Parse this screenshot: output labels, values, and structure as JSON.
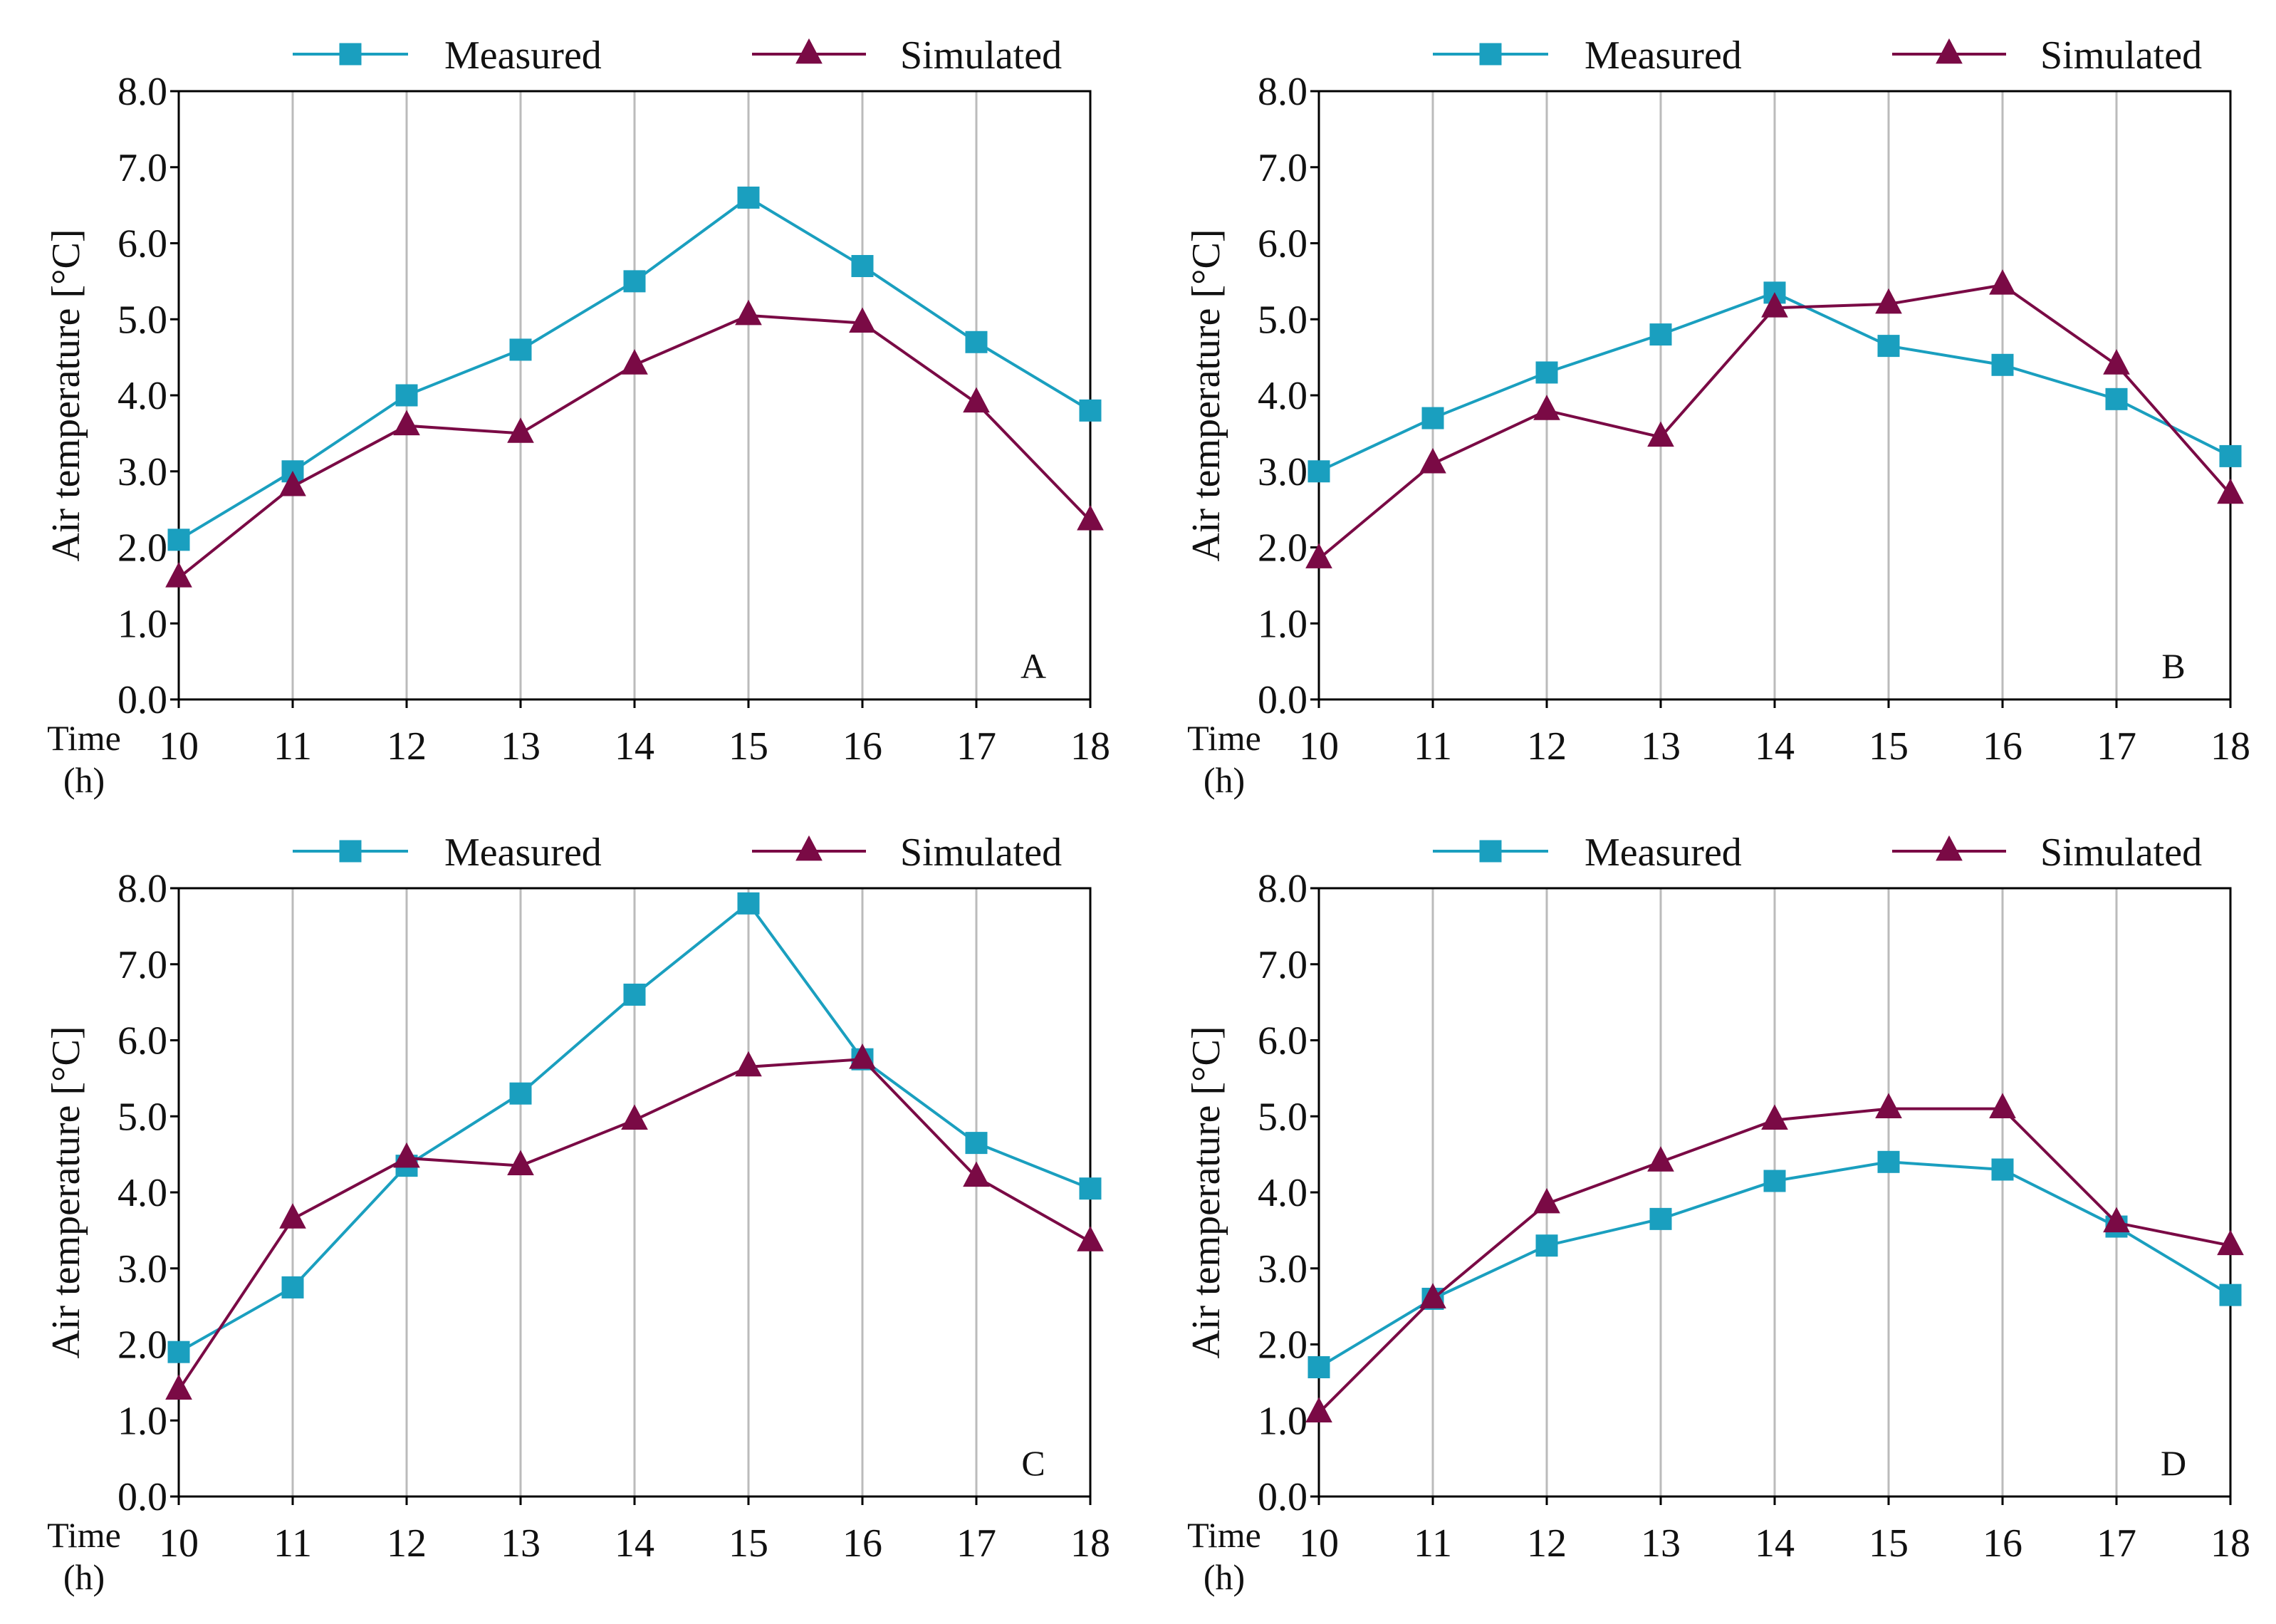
{
  "legend": {
    "measured": "Measured",
    "simulated": "Simulated"
  },
  "colors": {
    "measured": "#1a9fbf",
    "simulated": "#7a0a45",
    "grid": "#bbbbbb",
    "axis": "#000000"
  },
  "axis": {
    "ylabel": "Air temperature [°C]",
    "xlabel_line1": "Time",
    "xlabel_line2": "(h)"
  },
  "chart_data": [
    {
      "type": "line",
      "panel": "A",
      "categories": [
        "10",
        "11",
        "12",
        "13",
        "14",
        "15",
        "16",
        "17",
        "18"
      ],
      "x": [
        10,
        11,
        12,
        13,
        14,
        15,
        16,
        17,
        18
      ],
      "ylim": [
        0,
        8
      ],
      "yticks": [
        "0.0",
        "1.0",
        "2.0",
        "3.0",
        "4.0",
        "5.0",
        "6.0",
        "7.0",
        "8.0"
      ],
      "xlabel": "Time (h)",
      "ylabel": "Air temperature [°C]",
      "grid": "vertical",
      "series": [
        {
          "name": "Measured",
          "marker": "square",
          "values": [
            2.1,
            3.0,
            4.0,
            4.6,
            5.5,
            6.6,
            5.7,
            4.7,
            3.8
          ]
        },
        {
          "name": "Simulated",
          "marker": "triangle",
          "values": [
            1.6,
            2.8,
            3.6,
            3.5,
            4.4,
            5.05,
            4.95,
            3.9,
            2.35
          ]
        }
      ]
    },
    {
      "type": "line",
      "panel": "B",
      "categories": [
        "10",
        "11",
        "12",
        "13",
        "14",
        "15",
        "16",
        "17",
        "18"
      ],
      "x": [
        10,
        11,
        12,
        13,
        14,
        15,
        16,
        17,
        18
      ],
      "ylim": [
        0,
        8
      ],
      "yticks": [
        "0.0",
        "1.0",
        "2.0",
        "3.0",
        "4.0",
        "5.0",
        "6.0",
        "7.0",
        "8.0"
      ],
      "xlabel": "Time (h)",
      "ylabel": "Air temperature [°C]",
      "grid": "vertical",
      "series": [
        {
          "name": "Measured",
          "marker": "square",
          "values": [
            3.0,
            3.7,
            4.3,
            4.8,
            5.35,
            4.65,
            4.4,
            3.95,
            3.2
          ]
        },
        {
          "name": "Simulated",
          "marker": "triangle",
          "values": [
            1.85,
            3.1,
            3.8,
            3.45,
            5.15,
            5.2,
            5.45,
            4.4,
            2.7
          ]
        }
      ]
    },
    {
      "type": "line",
      "panel": "C",
      "categories": [
        "10",
        "11",
        "12",
        "13",
        "14",
        "15",
        "16",
        "17",
        "18"
      ],
      "x": [
        10,
        11,
        12,
        13,
        14,
        15,
        16,
        17,
        18
      ],
      "ylim": [
        0,
        8
      ],
      "yticks": [
        "0.0",
        "1.0",
        "2.0",
        "3.0",
        "4.0",
        "5.0",
        "6.0",
        "7.0",
        "8.0"
      ],
      "xlabel": "Time (h)",
      "ylabel": "Air temperature [°C]",
      "grid": "vertical",
      "series": [
        {
          "name": "Measured",
          "marker": "square",
          "values": [
            1.9,
            2.75,
            4.35,
            5.3,
            6.6,
            7.8,
            5.75,
            4.65,
            4.05
          ]
        },
        {
          "name": "Simulated",
          "marker": "triangle",
          "values": [
            1.4,
            3.65,
            4.45,
            4.35,
            4.95,
            5.65,
            5.75,
            4.2,
            3.35
          ]
        }
      ]
    },
    {
      "type": "line",
      "panel": "D",
      "categories": [
        "10",
        "11",
        "12",
        "13",
        "14",
        "15",
        "16",
        "17",
        "18"
      ],
      "x": [
        10,
        11,
        12,
        13,
        14,
        15,
        16,
        17,
        18
      ],
      "ylim": [
        0,
        8
      ],
      "yticks": [
        "0.0",
        "1.0",
        "2.0",
        "3.0",
        "4.0",
        "5.0",
        "6.0",
        "7.0",
        "8.0"
      ],
      "xlabel": "Time (h)",
      "ylabel": "Air temperature [°C]",
      "grid": "vertical",
      "series": [
        {
          "name": "Measured",
          "marker": "square",
          "values": [
            1.7,
            2.6,
            3.3,
            3.65,
            4.15,
            4.4,
            4.3,
            3.55,
            2.65
          ]
        },
        {
          "name": "Simulated",
          "marker": "triangle",
          "values": [
            1.1,
            2.6,
            3.85,
            4.4,
            4.95,
            5.1,
            5.1,
            3.6,
            3.3
          ]
        }
      ]
    }
  ]
}
